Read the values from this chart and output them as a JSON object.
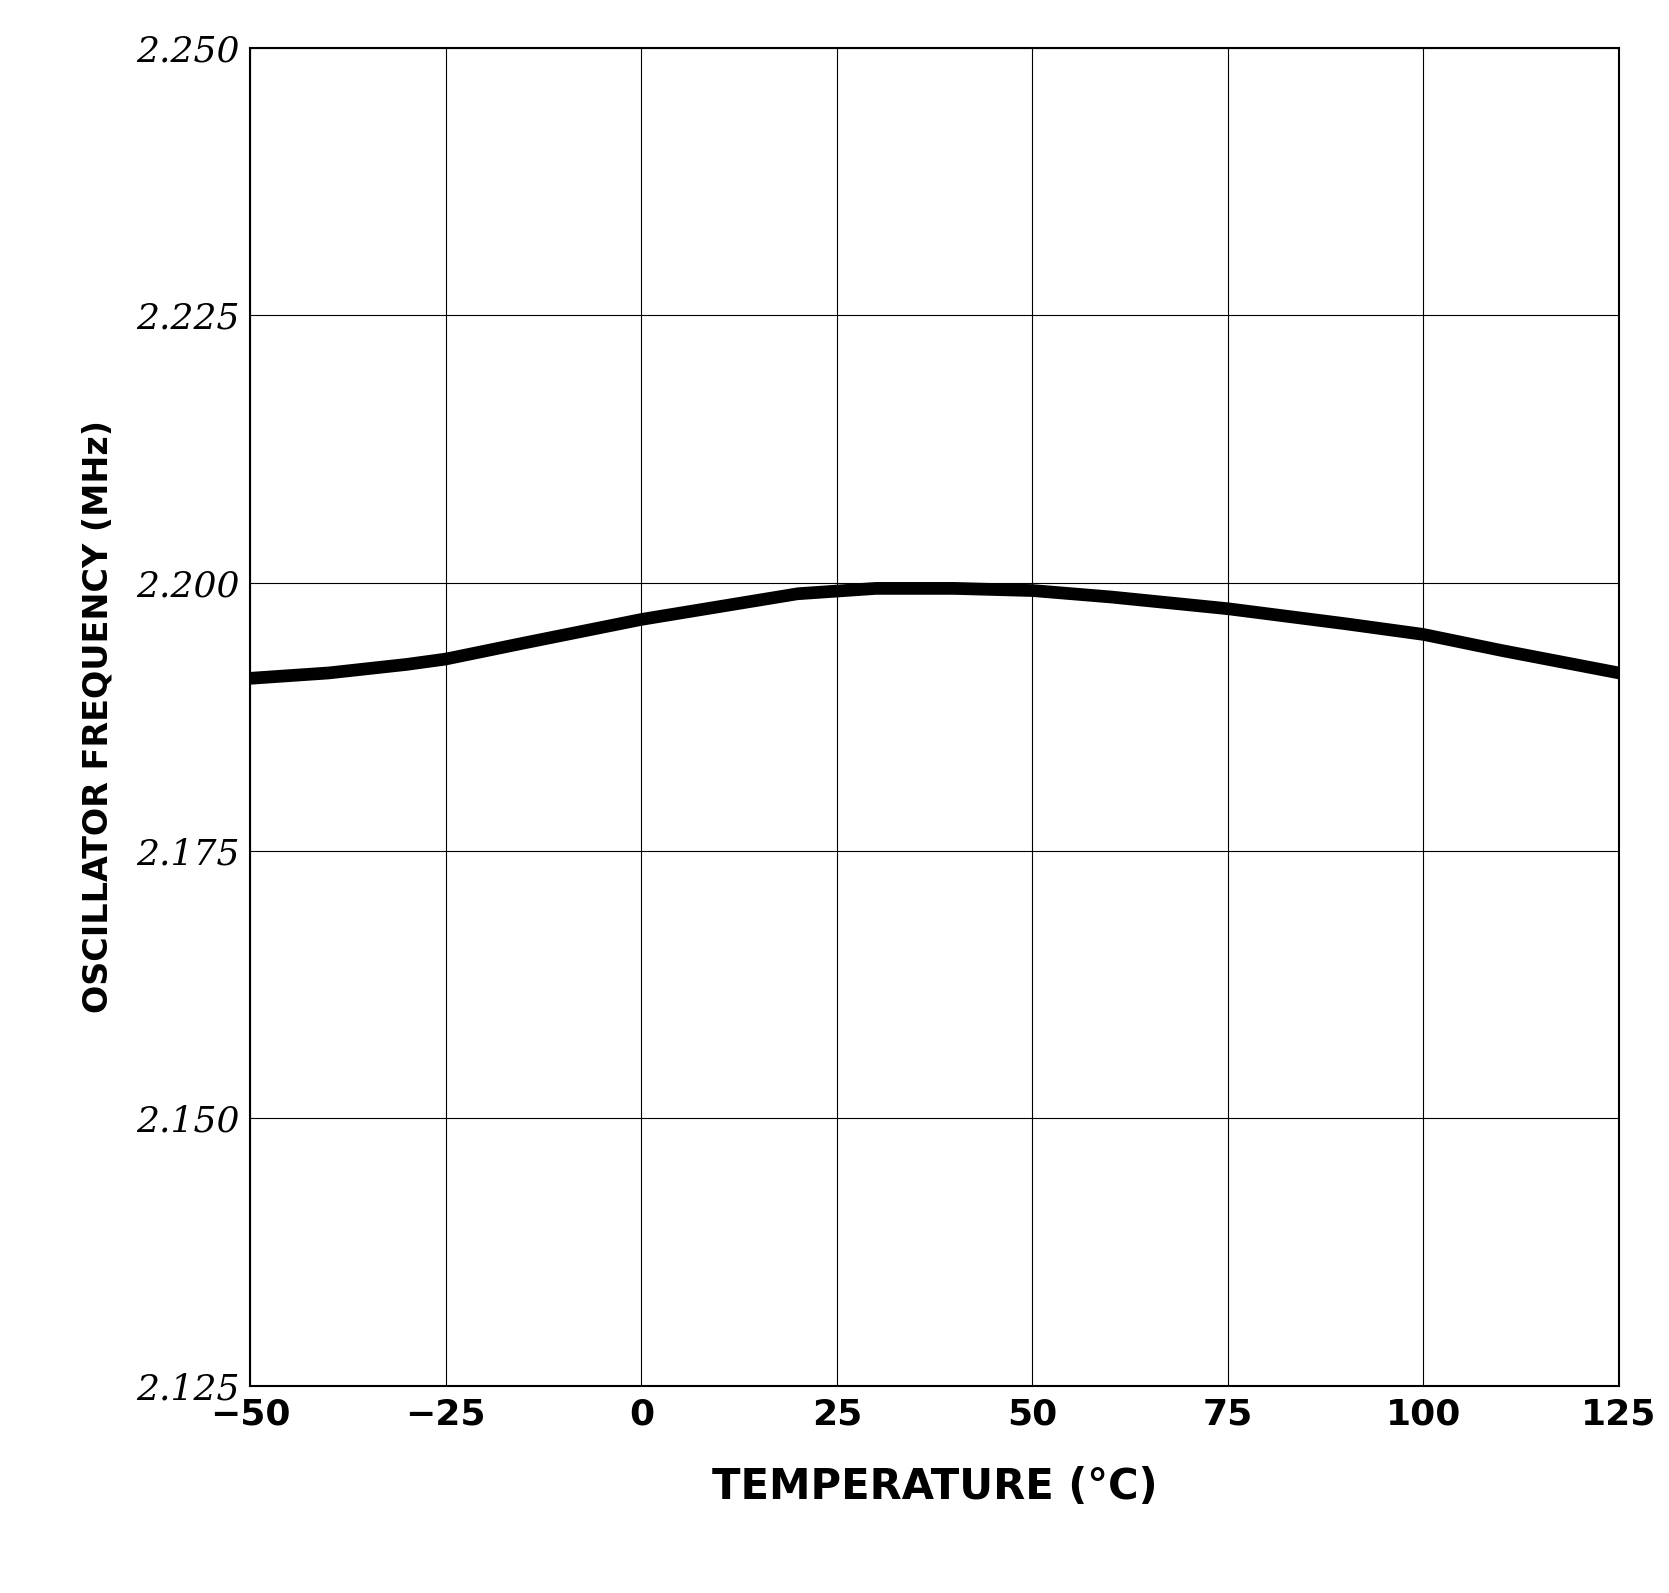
{
  "title": "",
  "xlabel": "TEMPERATURE (°C)",
  "ylabel": "OSCILLATOR FREQUENCY (MHz)",
  "xlim": [
    -50,
    125
  ],
  "ylim": [
    2.125,
    2.25
  ],
  "xticks": [
    -50,
    -25,
    0,
    25,
    50,
    75,
    100,
    125
  ],
  "yticks": [
    2.125,
    2.15,
    2.175,
    2.2,
    2.225,
    2.25
  ],
  "line_color": "#000000",
  "line_width": 3.0,
  "background_color": "#ffffff",
  "grid_color": "#000000",
  "temp_data": [
    -50,
    -40,
    -30,
    -25,
    -15,
    0,
    10,
    20,
    30,
    40,
    50,
    60,
    75,
    90,
    100,
    110,
    125
  ],
  "freq_data": [
    2.1915,
    2.192,
    2.1928,
    2.1933,
    2.1948,
    2.197,
    2.1982,
    2.1994,
    2.1999,
    2.1999,
    2.1997,
    2.1991,
    2.198,
    2.1966,
    2.1956,
    2.1941,
    2.192
  ],
  "freq_data2": [
    2.1907,
    2.1912,
    2.192,
    2.1925,
    2.194,
    2.1962,
    2.1974,
    2.1986,
    2.1991,
    2.1991,
    2.1989,
    2.1983,
    2.1972,
    2.1958,
    2.1948,
    2.1933,
    2.1912
  ],
  "xlabel_fontsize": 30,
  "ylabel_fontsize": 24,
  "tick_fontsize": 26
}
